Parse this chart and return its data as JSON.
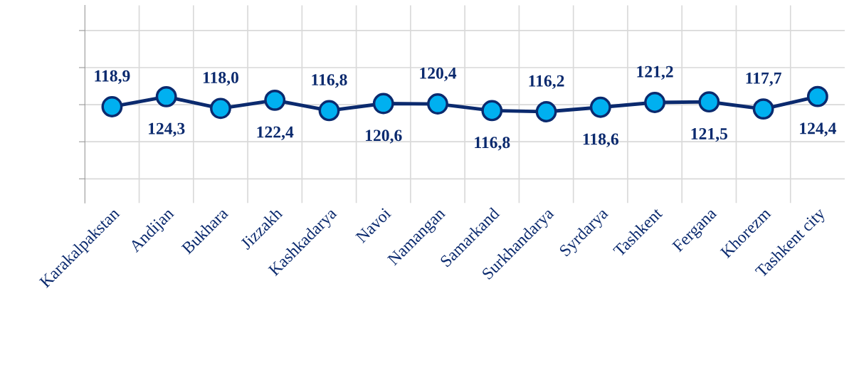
{
  "chart_data": {
    "type": "line",
    "categories": [
      "Karakalpakstan",
      "Andijan",
      "Bukhara",
      "Jizzakh",
      "Kashkadarya",
      "Navoi",
      "Namangan",
      "Samarkand",
      "Surkhandarya",
      "Syrdarya",
      "Tashkent",
      "Fergana",
      "Khorezm",
      "Tashkent city"
    ],
    "series": [
      {
        "color": "#0b2a6e",
        "values": [
          118.9,
          124.3,
          118.0,
          122.4,
          116.8,
          120.6,
          120.4,
          116.8,
          116.2,
          118.6,
          121.2,
          121.5,
          117.7,
          124.4
        ],
        "value_labels": [
          "118,9",
          "124,3",
          "118,0",
          "122,4",
          "116,8",
          "120,6",
          "120,4",
          "116,8",
          "116,2",
          "118,6",
          "121,2",
          "121,5",
          "117,7",
          "124,4"
        ]
      }
    ],
    "tick_labels": "x",
    "grid": true,
    "marker": "circle",
    "line_style": "solid"
  }
}
